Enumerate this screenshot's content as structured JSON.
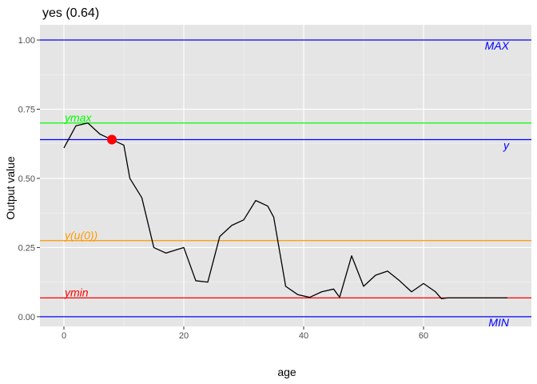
{
  "chart_data": {
    "type": "line",
    "title": "yes (0.64)",
    "xlabel": "age",
    "ylabel": "Output value",
    "xlim": [
      -4,
      78
    ],
    "ylim": [
      -0.035,
      1.055
    ],
    "x_ticks": [
      0,
      20,
      40,
      60
    ],
    "x_tick_labels": [
      "0",
      "20",
      "40",
      "60"
    ],
    "y_ticks": [
      0,
      0.25,
      0.5,
      0.75,
      1.0
    ],
    "y_tick_labels": [
      "0.00",
      "0.25",
      "0.50",
      "0.75",
      "1.00"
    ],
    "grid": true,
    "background": "#e5e5e5",
    "series": [
      {
        "color": "#000000",
        "x": [
          0,
          2,
          4,
          6,
          8,
          10,
          11,
          13,
          15,
          17,
          20,
          22,
          24,
          26,
          28,
          30,
          32,
          34,
          35,
          37,
          39,
          41,
          43,
          45,
          46,
          48,
          50,
          52,
          54,
          56,
          58,
          60,
          62,
          63,
          64,
          66,
          68,
          70,
          72,
          74
        ],
        "y": [
          0.61,
          0.69,
          0.7,
          0.66,
          0.64,
          0.62,
          0.5,
          0.43,
          0.25,
          0.23,
          0.25,
          0.13,
          0.125,
          0.29,
          0.33,
          0.35,
          0.42,
          0.4,
          0.36,
          0.11,
          0.08,
          0.07,
          0.09,
          0.1,
          0.07,
          0.22,
          0.11,
          0.15,
          0.165,
          0.13,
          0.09,
          0.12,
          0.09,
          0.065,
          0.068,
          0.068,
          0.068,
          0.068,
          0.068,
          0.068
        ]
      }
    ],
    "point": {
      "x": 8,
      "y": 0.64,
      "color": "#ff0000"
    },
    "reference_lines": [
      {
        "label": "MAX",
        "y": 1.0,
        "color": "#0000ff",
        "label_side": "right"
      },
      {
        "label": "ymax",
        "y": 0.7,
        "color": "#00ff00",
        "label_side": "left"
      },
      {
        "label": "y",
        "y": 0.64,
        "color": "#0000ff",
        "label_side": "right"
      },
      {
        "label": "y(u(0))",
        "y": 0.275,
        "color": "#ff9900",
        "label_side": "left"
      },
      {
        "label": "ymin",
        "y": 0.068,
        "color": "#ff0000",
        "label_side": "left"
      },
      {
        "label": "MIN",
        "y": 0.0,
        "color": "#0000ff",
        "label_side": "right"
      }
    ]
  }
}
